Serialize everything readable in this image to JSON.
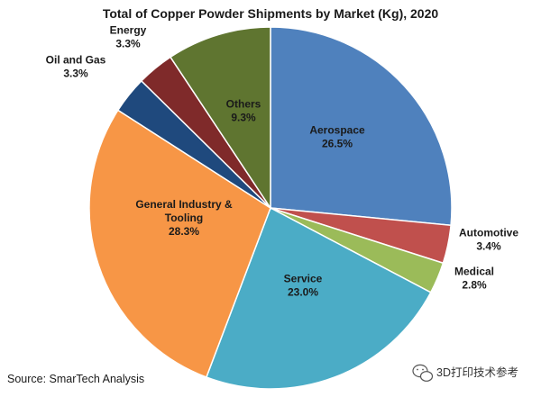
{
  "chart_data": {
    "type": "pie",
    "title": "Total of Copper Powder Shipments by Market (Kg), 2020",
    "slices": [
      {
        "label": "Aerospace",
        "value": 26.5,
        "display": "26.5%",
        "color": "#4f81bd"
      },
      {
        "label": "Automotive",
        "value": 3.4,
        "display": "3.4%",
        "color": "#c0504d"
      },
      {
        "label": "Medical",
        "value": 2.8,
        "display": "2.8%",
        "color": "#9bbb59"
      },
      {
        "label": "Service",
        "value": 23.0,
        "display": "23.0%",
        "color": "#4bacc6"
      },
      {
        "label": "General Industry & Tooling",
        "value": 28.3,
        "display": "28.3%",
        "color": "#f79646"
      },
      {
        "label": "Oil and Gas",
        "value": 3.3,
        "display": "3.3%",
        "color": "#1f497d"
      },
      {
        "label": "Energy",
        "value": 3.3,
        "display": "3.3%",
        "color": "#7f2a2a"
      },
      {
        "label": "Others",
        "value": 9.3,
        "display": "9.3%",
        "color": "#5f7530"
      }
    ],
    "start_angle": "12 o'clock",
    "direction": "clockwise",
    "legend": "none"
  },
  "footer": {
    "source": "Source: SmarTech Analysis",
    "watermark": "3D打印技术参考",
    "watermark_icon": "wechat-icon"
  }
}
